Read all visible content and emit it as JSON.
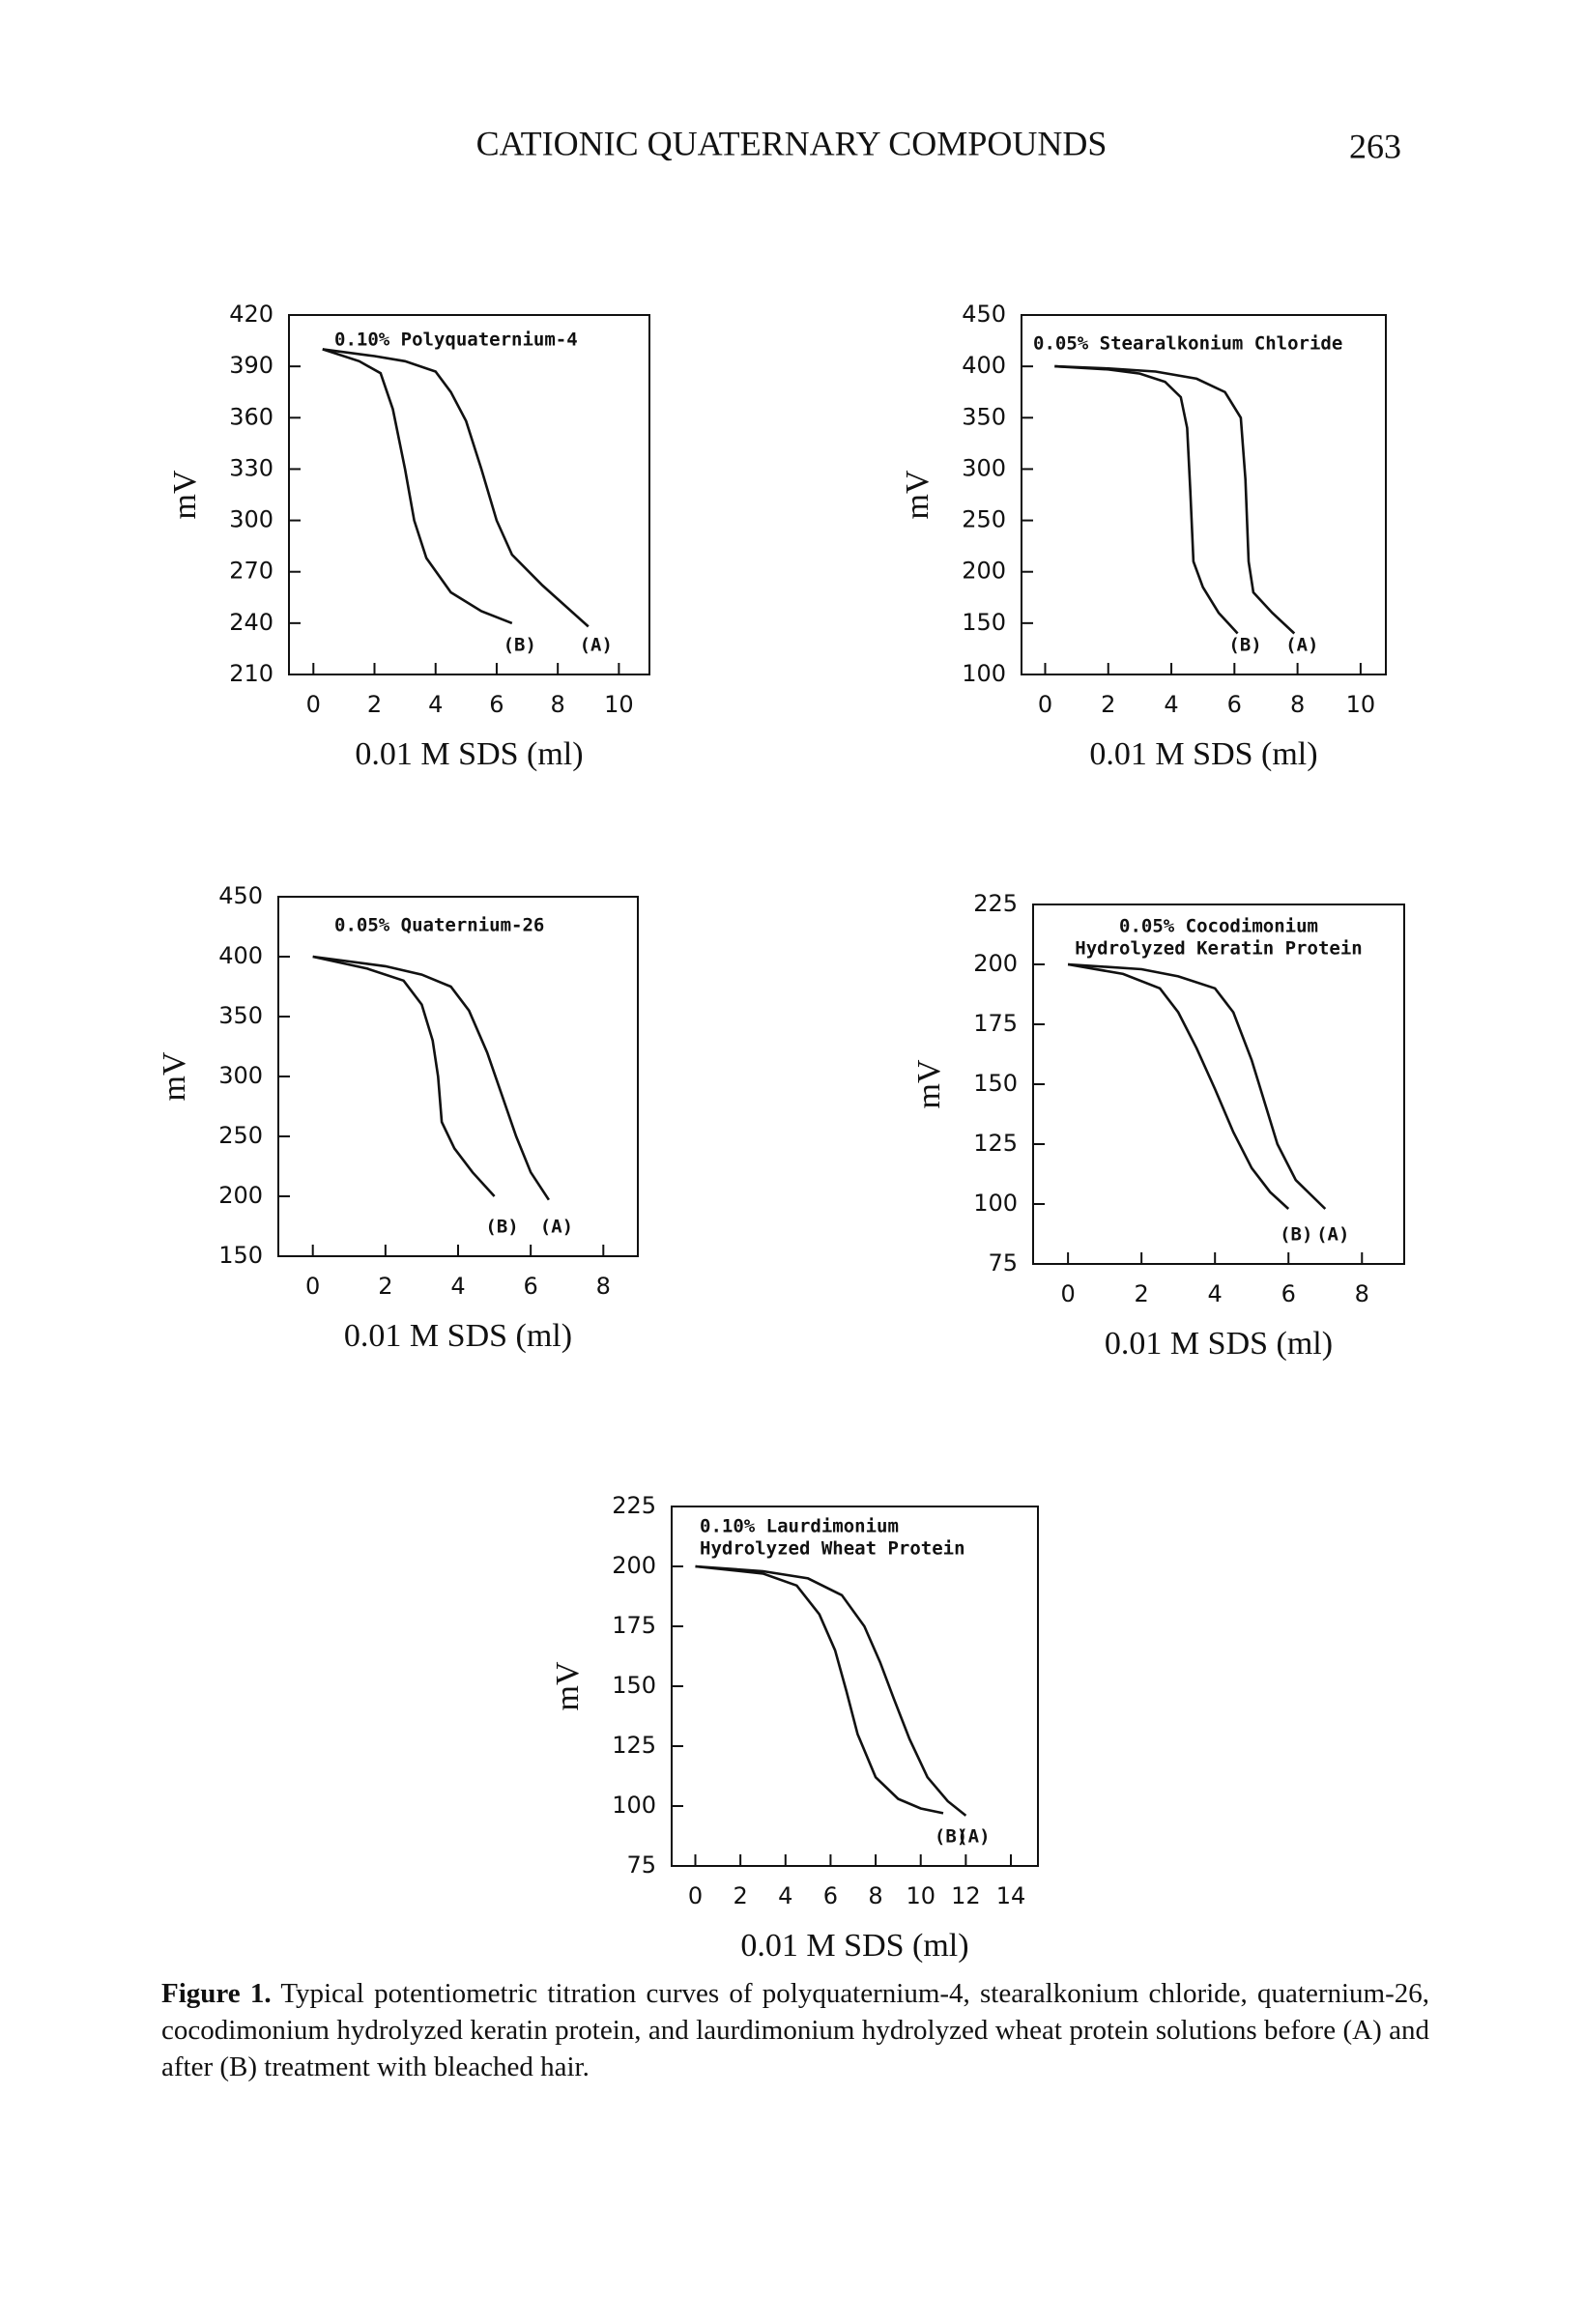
{
  "header": {
    "title": "CATIONIC QUATERNARY COMPOUNDS",
    "page_number": "263"
  },
  "chart_data": [
    {
      "type": "line",
      "title": [
        "0.10% Polyquaternium-4"
      ],
      "ylabel": "mV",
      "xlabel": "0.01 M SDS (ml)",
      "xlim": [
        -0.8,
        11
      ],
      "ylim": [
        210,
        420
      ],
      "xticks": [
        0,
        2,
        4,
        6,
        8,
        10
      ],
      "yticks": [
        210,
        240,
        270,
        300,
        330,
        360,
        390,
        420
      ],
      "series": [
        {
          "name": "(B)",
          "color": "#111111",
          "x": [
            0.3,
            1.5,
            2.2,
            2.6,
            3,
            3.3,
            3.7,
            4.5,
            5.5,
            6.5
          ],
          "values": [
            400,
            393,
            386,
            365,
            330,
            300,
            278,
            258,
            247,
            240
          ]
        },
        {
          "name": "(A)",
          "color": "#111111",
          "x": [
            0.3,
            2,
            3,
            4,
            4.5,
            5,
            5.5,
            6,
            6.5,
            7.5,
            9
          ],
          "values": [
            400,
            396,
            393,
            387,
            375,
            358,
            330,
            300,
            280,
            262,
            238
          ]
        }
      ]
    },
    {
      "type": "line",
      "title": [
        "0.05% Stearalkonium Chloride"
      ],
      "ylabel": "mV",
      "xlabel": "0.01 M SDS (ml)",
      "xlim": [
        -0.75,
        10.8
      ],
      "ylim": [
        100,
        450
      ],
      "xticks": [
        0,
        2,
        4,
        6,
        8,
        10
      ],
      "yticks": [
        100,
        150,
        200,
        250,
        300,
        350,
        400,
        450
      ],
      "series": [
        {
          "name": "(B)",
          "color": "#111111",
          "x": [
            0.3,
            2,
            3,
            3.8,
            4.3,
            4.5,
            4.6,
            4.7,
            5,
            5.5,
            6.1
          ],
          "values": [
            400,
            397,
            393,
            385,
            370,
            340,
            280,
            210,
            185,
            160,
            140
          ]
        },
        {
          "name": "(A)",
          "color": "#111111",
          "x": [
            0.3,
            2,
            3.5,
            4.8,
            5.7,
            6.2,
            6.35,
            6.45,
            6.6,
            7.2,
            7.9
          ],
          "values": [
            400,
            398,
            395,
            388,
            375,
            350,
            290,
            210,
            180,
            160,
            140
          ]
        }
      ]
    },
    {
      "type": "line",
      "title": [
        "0.05% Quaternium-26"
      ],
      "ylabel": "mV",
      "xlabel": "0.01 M SDS (ml)",
      "xlim": [
        -0.95,
        8.95
      ],
      "ylim": [
        150,
        450
      ],
      "xticks": [
        0,
        2,
        4,
        6,
        8
      ],
      "yticks": [
        150,
        200,
        250,
        300,
        350,
        400,
        450
      ],
      "series": [
        {
          "name": "(B)",
          "color": "#111111",
          "x": [
            0,
            1.5,
            2.5,
            3,
            3.3,
            3.45,
            3.55,
            3.9,
            4.4,
            5
          ],
          "values": [
            400,
            390,
            380,
            360,
            330,
            300,
            262,
            240,
            220,
            200
          ]
        },
        {
          "name": "(A)",
          "color": "#111111",
          "x": [
            0,
            2,
            3,
            3.8,
            4.3,
            4.8,
            5.2,
            5.6,
            6,
            6.5
          ],
          "values": [
            400,
            392,
            385,
            375,
            355,
            320,
            285,
            250,
            220,
            197
          ]
        }
      ]
    },
    {
      "type": "line",
      "title": [
        "0.05% Cocodimonium",
        "Hydrolyzed Keratin Protein"
      ],
      "ylabel": "mV",
      "xlabel": "0.01 M SDS (ml)",
      "xlim": [
        -0.95,
        9.15
      ],
      "ylim": [
        75,
        225
      ],
      "xticks": [
        0,
        2,
        4,
        6,
        8
      ],
      "yticks": [
        75,
        100,
        125,
        150,
        175,
        200,
        225
      ],
      "series": [
        {
          "name": "(B)",
          "color": "#111111",
          "x": [
            0,
            1.5,
            2.5,
            3,
            3.5,
            4,
            4.5,
            5,
            5.5,
            6
          ],
          "values": [
            200,
            196,
            190,
            180,
            165,
            148,
            130,
            115,
            105,
            98
          ]
        },
        {
          "name": "(A)",
          "color": "#111111",
          "x": [
            0,
            2,
            3,
            4,
            4.5,
            5,
            5.3,
            5.7,
            6.2,
            7
          ],
          "values": [
            200,
            198,
            195,
            190,
            180,
            160,
            145,
            125,
            110,
            98
          ]
        }
      ]
    },
    {
      "type": "line",
      "title": [
        "0.10% Laurdimonium",
        "Hydrolyzed Wheat Protein"
      ],
      "ylabel": "mV",
      "xlabel": "0.01 M SDS (ml)",
      "xlim": [
        -1.05,
        15.2
      ],
      "ylim": [
        75,
        225
      ],
      "xticks": [
        0,
        2,
        4,
        6,
        8,
        10,
        12,
        14
      ],
      "yticks": [
        75,
        100,
        125,
        150,
        175,
        200,
        225
      ],
      "series": [
        {
          "name": "(B)",
          "color": "#111111",
          "x": [
            0,
            3,
            4.5,
            5.5,
            6.2,
            6.7,
            7.2,
            8,
            9,
            10,
            11
          ],
          "values": [
            200,
            197,
            192,
            180,
            165,
            148,
            130,
            112,
            103,
            99,
            97
          ]
        },
        {
          "name": "(A)",
          "color": "#111111",
          "x": [
            0,
            3,
            5,
            6.5,
            7.5,
            8.2,
            8.8,
            9.5,
            10.3,
            11.2,
            12
          ],
          "values": [
            200,
            198,
            195,
            188,
            175,
            160,
            145,
            128,
            112,
            102,
            96
          ]
        }
      ]
    }
  ],
  "caption": {
    "label": "Figure 1.",
    "text": "Typical potentiometric titration curves of polyquaternium-4, stearalkonium chloride, quaternium-26, cocodimonium hydrolyzed keratin protein, and laurdimonium hydrolyzed wheat protein solutions before (A) and after (B) treatment with bleached hair."
  }
}
